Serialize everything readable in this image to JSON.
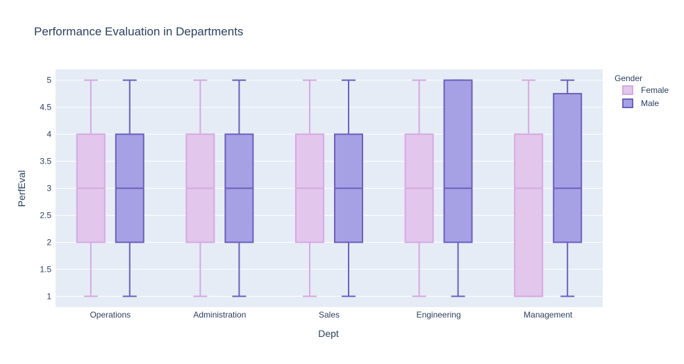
{
  "chart_data": {
    "type": "box",
    "title": "Performance Evaluation in Departments",
    "xlabel": "Dept",
    "ylabel": "PerfEval",
    "categories": [
      "Operations",
      "Administration",
      "Sales",
      "Engineering",
      "Management"
    ],
    "ylim": [
      0.8,
      5.2
    ],
    "yticks": [
      1,
      1.5,
      2,
      2.5,
      3,
      3.5,
      4,
      4.5,
      5
    ],
    "ytick_labels": [
      "1",
      "1.5",
      "2",
      "2.5",
      "3",
      "3.5",
      "4",
      "4.5",
      "5"
    ],
    "grid": true,
    "legend": {
      "title": "Gender",
      "position": "top-right"
    },
    "series": [
      {
        "name": "Female",
        "fill": "#e2c6ec",
        "line": "#d8a8e0",
        "boxes": [
          {
            "min": 1,
            "q1": 2,
            "median": 3,
            "q3": 4,
            "max": 5
          },
          {
            "min": 1,
            "q1": 2,
            "median": 3,
            "q3": 4,
            "max": 5
          },
          {
            "min": 1,
            "q1": 2,
            "median": 3,
            "q3": 4,
            "max": 5
          },
          {
            "min": 1,
            "q1": 2,
            "median": 3,
            "q3": 4,
            "max": 5
          },
          {
            "min": 1,
            "q1": 1,
            "median": 3,
            "q3": 4,
            "max": 5
          }
        ]
      },
      {
        "name": "Male",
        "fill": "#a6a1e4",
        "line": "#6c5fbe",
        "boxes": [
          {
            "min": 1,
            "q1": 2,
            "median": 3,
            "q3": 4,
            "max": 5
          },
          {
            "min": 1,
            "q1": 2,
            "median": 3,
            "q3": 4,
            "max": 5
          },
          {
            "min": 1,
            "q1": 2,
            "median": 3,
            "q3": 4,
            "max": 5
          },
          {
            "min": 1,
            "q1": 2,
            "median": 3,
            "q3": 5,
            "max": 5
          },
          {
            "min": 1,
            "q1": 2,
            "median": 3,
            "q3": 4.75,
            "max": 5
          }
        ]
      }
    ]
  }
}
